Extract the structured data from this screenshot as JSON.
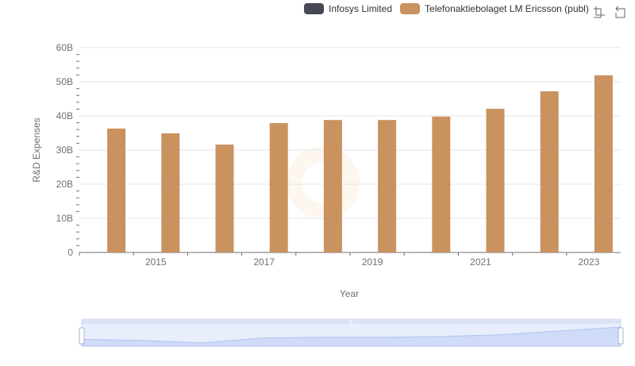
{
  "legend": {
    "items": [
      {
        "label": "Infosys Limited",
        "color": "#474856"
      },
      {
        "label": "Telefonaktiebolaget LM Ericsson (publ)",
        "display": "Telefonaktiebolaget LM Ericsson (publ)",
        "color": "#c9925e"
      }
    ]
  },
  "toolbox": {
    "zoom_icon": "zoom-select-icon",
    "reset_icon": "zoom-reset-icon"
  },
  "chart_data": {
    "type": "bar",
    "title": "",
    "xlabel": "Year",
    "ylabel": "R&D Expenses",
    "categories": [
      "2014",
      "2015",
      "2016",
      "2017",
      "2018",
      "2019",
      "2020",
      "2021",
      "2022",
      "2023"
    ],
    "x_tick_labels": [
      "2015",
      "2017",
      "2019",
      "2021",
      "2023"
    ],
    "y_tick_labels": [
      "0",
      "10B",
      "20B",
      "30B",
      "40B",
      "50B",
      "60B"
    ],
    "ylim": [
      0,
      60
    ],
    "y_unit": "B",
    "grid": true,
    "legend_position": "top-right",
    "series": [
      {
        "name": "Infosys Limited",
        "color": "#474856",
        "values": [
          0.04,
          0.04,
          0.05,
          0.05,
          0.05,
          0.05,
          0.05,
          0.05,
          0.05,
          0.05
        ]
      },
      {
        "name": "Telefonaktiebolaget LM Ericsson (publ)",
        "color": "#c9925e",
        "values": [
          36.3,
          34.9,
          31.6,
          37.9,
          38.8,
          38.8,
          39.8,
          42.1,
          47.2,
          51.9
        ]
      }
    ],
    "datazoom": {
      "start_percent": 0,
      "end_percent": 100
    }
  }
}
